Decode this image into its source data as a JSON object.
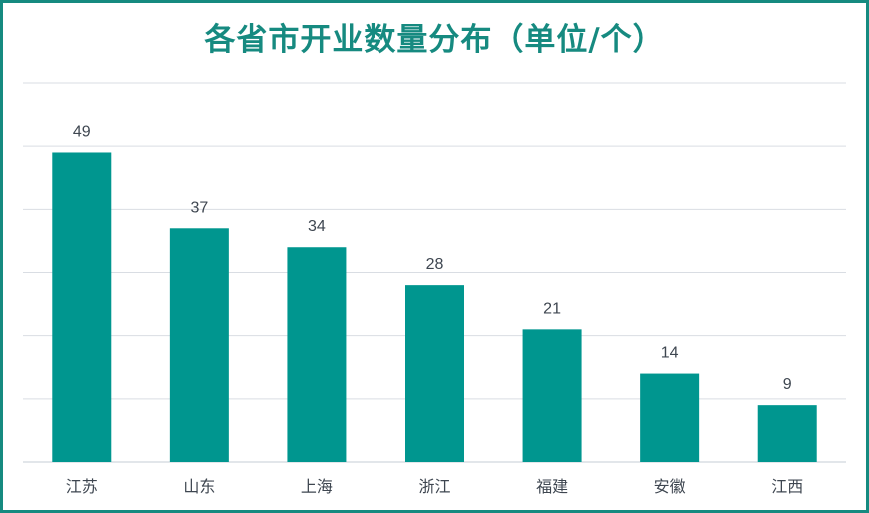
{
  "chart_data": {
    "type": "bar",
    "title": "各省市开业数量分布（单位/个）",
    "categories": [
      "江苏",
      "山东",
      "上海",
      "浙江",
      "福建",
      "安徽",
      "江西"
    ],
    "values": [
      49,
      37,
      34,
      28,
      21,
      14,
      9
    ],
    "xlabel": "",
    "ylabel": "",
    "ylim": [
      0,
      60
    ],
    "grid": true,
    "bar_color": "#00968f",
    "grid_color": "#d9dde3",
    "title_color": "#168a80",
    "border_color": "#168a80"
  }
}
